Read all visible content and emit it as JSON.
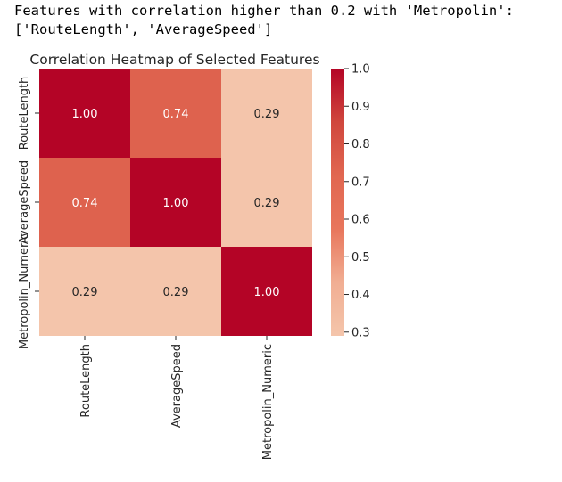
{
  "output": {
    "lines": [
      "Features with correlation higher than 0.2 with 'Metropolin':",
      "['RouteLength', 'AverageSpeed']"
    ]
  },
  "chart_data": {
    "type": "heatmap",
    "title": "Correlation Heatmap of Selected Features",
    "x_categories": [
      "RouteLength",
      "AverageSpeed",
      "Metropolin_Numeric"
    ],
    "y_categories": [
      "RouteLength",
      "AverageSpeed",
      "Metropolin_Numeric"
    ],
    "values": [
      [
        1.0,
        0.74,
        0.29
      ],
      [
        0.74,
        1.0,
        0.29
      ],
      [
        0.29,
        0.29,
        1.0
      ]
    ],
    "annotations": [
      [
        "1.00",
        "0.74",
        "0.29"
      ],
      [
        "0.74",
        "1.00",
        "0.29"
      ],
      [
        "0.29",
        "0.29",
        "1.00"
      ]
    ],
    "colorbar": {
      "min": 0.29,
      "max": 1.0,
      "ticks": [
        1.0,
        0.9,
        0.8,
        0.7,
        0.6,
        0.5,
        0.4,
        0.3
      ],
      "tick_labels": [
        "1.0",
        "0.9",
        "0.8",
        "0.7",
        "0.6",
        "0.5",
        "0.4",
        "0.3"
      ],
      "colormap": "coolwarm",
      "colors": [
        "#f4c5ab",
        "#f1ae93",
        "#e8765c",
        "#e16751",
        "#d0473d",
        "#b40426"
      ]
    },
    "xlabel": "",
    "ylabel": ""
  }
}
